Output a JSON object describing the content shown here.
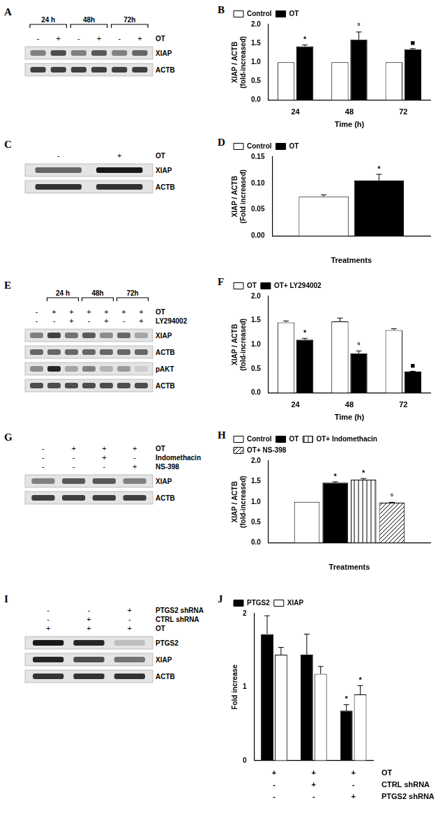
{
  "chart_data": [
    {
      "panel": "B",
      "type": "bar",
      "x_label": "Time (h)",
      "y_label": [
        "XIAP / ACTB",
        "(fold-increased)"
      ],
      "categories": [
        "24",
        "48",
        "72"
      ],
      "series": [
        {
          "name": "Control",
          "color": "#ffffff",
          "values": [
            1,
            1,
            1
          ]
        },
        {
          "name": "OT",
          "color": "#000000",
          "values": [
            1.42,
            1.6,
            1.34
          ],
          "errors": [
            0.04,
            0.2,
            0.02
          ],
          "annotations": [
            "*",
            "°",
            "■"
          ]
        }
      ],
      "ylim": [
        0,
        2
      ],
      "yticks": [
        {
          "value": 0,
          "label": "0.0"
        },
        {
          "value": 0.5,
          "label": "0.5"
        },
        {
          "value": 1,
          "label": "1.0"
        },
        {
          "value": 1.5,
          "label": "1.5"
        },
        {
          "value": 2,
          "label": "2.0"
        }
      ],
      "grid": false,
      "legend": "top-left"
    },
    {
      "panel": "D",
      "type": "bar",
      "x_label": "Treatments",
      "y_label": [
        "XIAP / ACTB",
        "(Fold increased)"
      ],
      "categories": [
        null
      ],
      "series": [
        {
          "name": "Control",
          "color": "#ffffff",
          "values": [
            0.075
          ],
          "errors": [
            0.003
          ]
        },
        {
          "name": "OT",
          "color": "#000000",
          "values": [
            0.105
          ],
          "errors": [
            0.012
          ],
          "annotations": [
            "*"
          ]
        }
      ],
      "ylim": [
        0,
        0.15
      ],
      "yticks": [
        {
          "value": 0,
          "label": "0.00"
        },
        {
          "value": 0.05,
          "label": "0.05"
        },
        {
          "value": 0.1,
          "label": "0.10"
        },
        {
          "value": 0.15,
          "label": "0.15"
        }
      ],
      "grid": false,
      "legend": "top-left"
    },
    {
      "panel": "F",
      "type": "bar",
      "x_label": "Time (h)",
      "y_label": [
        "XIAP / ACTB",
        "(fold-increased)"
      ],
      "categories": [
        "24",
        "48",
        "72"
      ],
      "series": [
        {
          "name": "OT",
          "color": "#ffffff",
          "values": [
            1.46,
            1.48,
            1.3
          ],
          "errors": [
            0.03,
            0.07,
            0.03
          ]
        },
        {
          "name": "OT+ LY294002",
          "color": "#000000",
          "values": [
            1.1,
            0.82,
            0.44
          ],
          "errors": [
            0.03,
            0.05,
            0.01
          ],
          "annotations": [
            "*",
            "°",
            "■"
          ]
        }
      ],
      "ylim": [
        0,
        2
      ],
      "yticks": [
        {
          "value": 0,
          "label": "0.0"
        },
        {
          "value": 0.5,
          "label": "0.5"
        },
        {
          "value": 1,
          "label": "1.0"
        },
        {
          "value": 1.5,
          "label": "1.5"
        },
        {
          "value": 2,
          "label": "2.0"
        }
      ],
      "grid": false,
      "legend": "top-left"
    },
    {
      "panel": "H",
      "type": "bar",
      "x_label": "Treatments",
      "y_label": [
        "XIAP / ACTB",
        "(fold-increased)"
      ],
      "categories": [
        null
      ],
      "series": [
        {
          "name": "Control",
          "color": "#ffffff",
          "values": [
            1.0
          ]
        },
        {
          "name": "OT",
          "color": "#000000",
          "values": [
            1.47
          ],
          "errors": [
            0.02
          ],
          "annotations": [
            "*"
          ]
        },
        {
          "name": "OT+ Indomethacin",
          "color": "#ffffff",
          "marker": "vertical_hatch",
          "values": [
            1.54
          ],
          "errors": [
            0.03
          ],
          "annotations": [
            "*"
          ]
        },
        {
          "name": "OT+ NS-398",
          "color": "#ffffff",
          "marker": "diagonal_hatch",
          "values": [
            0.98
          ],
          "errors": [
            0.01
          ],
          "annotations": [
            "°"
          ]
        }
      ],
      "ylim": [
        0,
        2
      ],
      "yticks": [
        {
          "value": 0,
          "label": "0.0"
        },
        {
          "value": 0.5,
          "label": "0.5"
        },
        {
          "value": 1,
          "label": "1.0"
        },
        {
          "value": 1.5,
          "label": "1.5"
        },
        {
          "value": 2,
          "label": "2.0"
        }
      ],
      "grid": false,
      "legend": "top-left"
    },
    {
      "panel": "J",
      "type": "bar",
      "y_label": [
        "Fold increase"
      ],
      "categories": [
        null,
        null,
        null
      ],
      "series": [
        {
          "name": "PTGS2",
          "color": "#000000",
          "values": [
            1.72,
            1.44,
            0.68
          ],
          "errors": [
            0.25,
            0.28,
            0.08
          ],
          "annotations": [
            null,
            null,
            "*"
          ]
        },
        {
          "name": "XIAP",
          "color": "#ffffff",
          "values": [
            1.44,
            1.18,
            0.9
          ],
          "errors": [
            0.1,
            0.1,
            0.12
          ],
          "annotations": [
            null,
            null,
            "*"
          ]
        }
      ],
      "treatments": [
        {
          "label": "OT",
          "signs": [
            "+",
            "+",
            "+"
          ]
        },
        {
          "label": "CTRL shRNA",
          "signs": [
            "-",
            "+",
            "-"
          ]
        },
        {
          "label": "PTGS2 shRNA",
          "signs": [
            "-",
            "-",
            "+"
          ]
        }
      ],
      "ylim": [
        0,
        2
      ],
      "yticks": [
        0,
        1,
        2
      ],
      "grid": false,
      "legend": "top-left"
    }
  ],
  "blots": [
    {
      "panel": "A",
      "lanes": 6,
      "groups": [
        {
          "label": "24 h",
          "lanes": [
            1,
            2
          ]
        },
        {
          "label": "48h",
          "lanes": [
            3,
            4
          ]
        },
        {
          "label": "72h",
          "lanes": [
            5,
            6
          ]
        }
      ],
      "treatments": [
        {
          "label": "OT",
          "signs": [
            "-",
            "+",
            "-",
            "+",
            "-",
            "+"
          ]
        }
      ],
      "bands": [
        {
          "label": "XIAP",
          "intensity": [
            0.5,
            0.7,
            0.5,
            0.65,
            0.5,
            0.6
          ]
        },
        {
          "label": "ACTB",
          "intensity": [
            0.75,
            0.75,
            0.75,
            0.75,
            0.75,
            0.75
          ]
        }
      ]
    },
    {
      "panel": "C",
      "lanes": 2,
      "treatments": [
        {
          "label": "OT",
          "signs": [
            "-",
            "+"
          ]
        }
      ],
      "bands": [
        {
          "label": "XIAP",
          "intensity": [
            0.6,
            0.9
          ]
        },
        {
          "label": "ACTB",
          "intensity": [
            0.8,
            0.8
          ]
        }
      ]
    },
    {
      "panel": "E",
      "lanes": 7,
      "groups": [
        {
          "label": "24 h",
          "lanes": [
            2,
            3
          ]
        },
        {
          "label": "48h",
          "lanes": [
            4,
            5
          ]
        },
        {
          "label": "72h",
          "lanes": [
            6,
            7
          ]
        }
      ],
      "treatments": [
        {
          "label": "OT",
          "signs": [
            "-",
            "+",
            "+",
            "+",
            "+",
            "+",
            "+"
          ]
        },
        {
          "label": "LY294002",
          "signs": [
            "-",
            "-",
            "+",
            "-",
            "+",
            "-",
            "+"
          ]
        }
      ],
      "bands": [
        {
          "label": "XIAP",
          "intensity": [
            0.5,
            0.75,
            0.55,
            0.65,
            0.45,
            0.6,
            0.35
          ]
        },
        {
          "label": "ACTB",
          "intensity": [
            0.6,
            0.6,
            0.6,
            0.6,
            0.6,
            0.6,
            0.6
          ]
        },
        {
          "label": "pAKT",
          "intensity": [
            0.45,
            0.85,
            0.35,
            0.5,
            0.3,
            0.4,
            0.2
          ]
        },
        {
          "label": "ACTB",
          "intensity": [
            0.7,
            0.7,
            0.7,
            0.7,
            0.7,
            0.7,
            0.7
          ]
        }
      ]
    },
    {
      "panel": "G",
      "lanes": 4,
      "treatments": [
        {
          "label": "OT",
          "signs": [
            "-",
            "+",
            "+",
            "+"
          ]
        },
        {
          "label": "Indomethacin",
          "signs": [
            "-",
            "-",
            "+",
            "-"
          ]
        },
        {
          "label": "NS-398",
          "signs": [
            "-",
            "-",
            "-",
            "+"
          ]
        }
      ],
      "bands": [
        {
          "label": "XIAP",
          "intensity": [
            0.5,
            0.65,
            0.65,
            0.5
          ]
        },
        {
          "label": "ACTB",
          "intensity": [
            0.75,
            0.75,
            0.75,
            0.75
          ]
        }
      ]
    },
    {
      "panel": "I",
      "lanes": 3,
      "treatments": [
        {
          "label": "PTGS2 shRNA",
          "signs": [
            "-",
            "-",
            "+"
          ]
        },
        {
          "label": "CTRL shRNA",
          "signs": [
            "-",
            "+",
            "-"
          ]
        },
        {
          "label": "OT",
          "signs": [
            "+",
            "+",
            "+"
          ]
        }
      ],
      "bands": [
        {
          "label": "PTGS2",
          "intensity": [
            0.9,
            0.85,
            0.25
          ]
        },
        {
          "label": "XIAP",
          "intensity": [
            0.85,
            0.7,
            0.55
          ]
        },
        {
          "label": "ACTB",
          "intensity": [
            0.8,
            0.8,
            0.8
          ]
        }
      ]
    }
  ]
}
